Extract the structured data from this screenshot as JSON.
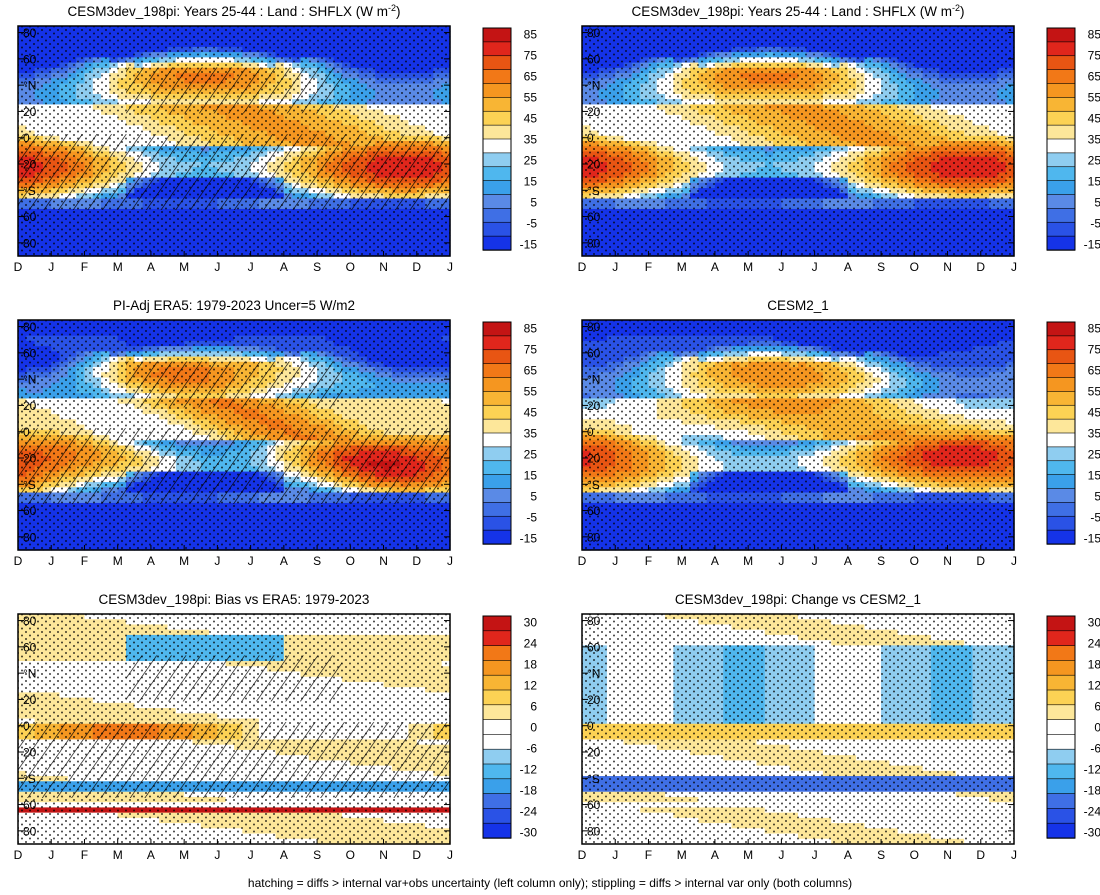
{
  "figure": {
    "footer": "hatching = diffs > internal var+obs uncertainty (left column only); stippling = diffs > internal var only (both columns)"
  },
  "colors": {
    "mean_scale": [
      "#1533e8",
      "#2a52e6",
      "#3f6fe5",
      "#5a8ae6",
      "#3aa0ea",
      "#4fb7ee",
      "#8fcdf0",
      "#ffffff",
      "#fde79a",
      "#fcd254",
      "#f8b534",
      "#f59620",
      "#f27817",
      "#e85513",
      "#e0261c",
      "#c41414"
    ],
    "diff_scale": [
      "#1533e8",
      "#2a52e6",
      "#3f6fe5",
      "#3aa0ea",
      "#4fb7ee",
      "#8fcdf0",
      "#ffffff",
      "#ffffff",
      "#fde79a",
      "#fcd254",
      "#f8b534",
      "#f59620",
      "#f27817",
      "#e0261c",
      "#c41414"
    ]
  },
  "chart_data": [
    {
      "type": "heatmap",
      "title": "CESM3dev_198pi: Years 25-44 : Land : SHFLX (W m-2)",
      "title_main": "CESM3dev_198pi: Years 25-44 : Land : SHFLX (W m",
      "title_sup": "-2",
      "title_end": ")",
      "x_ticks": [
        "D",
        "J",
        "F",
        "M",
        "A",
        "M",
        "J",
        "J",
        "A",
        "S",
        "O",
        "N",
        "D",
        "J"
      ],
      "y_ticks": [
        "80",
        "60",
        "°N",
        "20",
        "0",
        "20",
        "°S",
        "60",
        "80"
      ],
      "y_range": [
        -90,
        85
      ],
      "colorbar_labels": [
        "85",
        "75",
        "65",
        "55",
        "45",
        "35",
        "25",
        "15",
        "5",
        "-5",
        "-15"
      ],
      "field": "mean",
      "variant": 0,
      "hatch": true
    },
    {
      "type": "heatmap",
      "title": "CESM3dev_198pi: Years 25-44 : Land : SHFLX (W m-2)",
      "title_main": "CESM3dev_198pi: Years 25-44 : Land : SHFLX (W m",
      "title_sup": "-2",
      "title_end": ")",
      "x_ticks": [
        "D",
        "J",
        "F",
        "M",
        "A",
        "M",
        "J",
        "J",
        "A",
        "S",
        "O",
        "N",
        "D",
        "J"
      ],
      "y_ticks": [
        "80",
        "60",
        "°N",
        "20",
        "0",
        "20",
        "°S",
        "60",
        "80"
      ],
      "y_range": [
        -90,
        85
      ],
      "colorbar_labels": [
        "85",
        "75",
        "65",
        "55",
        "45",
        "35",
        "25",
        "15",
        "5",
        "-5",
        "-15"
      ],
      "field": "mean",
      "variant": 0,
      "hatch": false
    },
    {
      "type": "heatmap",
      "title": "PI-Adj ERA5: 1979-2023 Uncer=5 W/m2",
      "title_main": "PI-Adj ERA5: 1979-2023 Uncer=5 W/m2",
      "title_sup": "",
      "title_end": "",
      "x_ticks": [
        "D",
        "J",
        "F",
        "M",
        "A",
        "M",
        "J",
        "J",
        "A",
        "S",
        "O",
        "N",
        "D",
        "J"
      ],
      "y_ticks": [
        "80",
        "60",
        "°N",
        "20",
        "0",
        "20",
        "°S",
        "60",
        "80"
      ],
      "y_range": [
        -90,
        85
      ],
      "colorbar_labels": [
        "85",
        "75",
        "65",
        "55",
        "45",
        "35",
        "25",
        "15",
        "5",
        "-5",
        "-15"
      ],
      "field": "mean",
      "variant": 1,
      "hatch": true
    },
    {
      "type": "heatmap",
      "title": "CESM2_1",
      "title_main": "CESM2_1",
      "title_sup": "",
      "title_end": "",
      "x_ticks": [
        "D",
        "J",
        "F",
        "M",
        "A",
        "M",
        "J",
        "J",
        "A",
        "S",
        "O",
        "N",
        "D",
        "J"
      ],
      "y_ticks": [
        "80",
        "60",
        "°N",
        "20",
        "0",
        "20",
        "°S",
        "60",
        "80"
      ],
      "y_range": [
        -90,
        85
      ],
      "colorbar_labels": [
        "85",
        "75",
        "65",
        "55",
        "45",
        "35",
        "25",
        "15",
        "5",
        "-5",
        "-15"
      ],
      "field": "mean",
      "variant": 2,
      "hatch": false
    },
    {
      "type": "heatmap",
      "title": "CESM3dev_198pi: Bias vs ERA5: 1979-2023",
      "title_main": "CESM3dev_198pi: Bias vs ERA5: 1979-2023",
      "title_sup": "",
      "title_end": "",
      "x_ticks": [
        "D",
        "J",
        "F",
        "M",
        "A",
        "M",
        "J",
        "J",
        "A",
        "S",
        "O",
        "N",
        "D",
        "J"
      ],
      "y_ticks": [
        "80",
        "60",
        "°N",
        "20",
        "0",
        "20",
        "°S",
        "60",
        "80"
      ],
      "y_range": [
        -90,
        85
      ],
      "colorbar_labels": [
        "30",
        "24",
        "18",
        "12",
        "6",
        "0",
        "-6",
        "-12",
        "-18",
        "-24",
        "-30"
      ],
      "field": "diff",
      "variant": 0,
      "hatch": true
    },
    {
      "type": "heatmap",
      "title": "CESM3dev_198pi: Change vs CESM2_1",
      "title_main": "CESM3dev_198pi: Change vs CESM2_1",
      "title_sup": "",
      "title_end": "",
      "x_ticks": [
        "D",
        "J",
        "F",
        "M",
        "A",
        "M",
        "J",
        "J",
        "A",
        "S",
        "O",
        "N",
        "D",
        "J"
      ],
      "y_ticks": [
        "80",
        "60",
        "°N",
        "20",
        "0",
        "20",
        "°S",
        "60",
        "80"
      ],
      "y_range": [
        -90,
        85
      ],
      "colorbar_labels": [
        "30",
        "24",
        "18",
        "12",
        "6",
        "0",
        "-6",
        "-12",
        "-18",
        "-24",
        "-30"
      ],
      "field": "diff",
      "variant": 1,
      "hatch": false
    }
  ]
}
